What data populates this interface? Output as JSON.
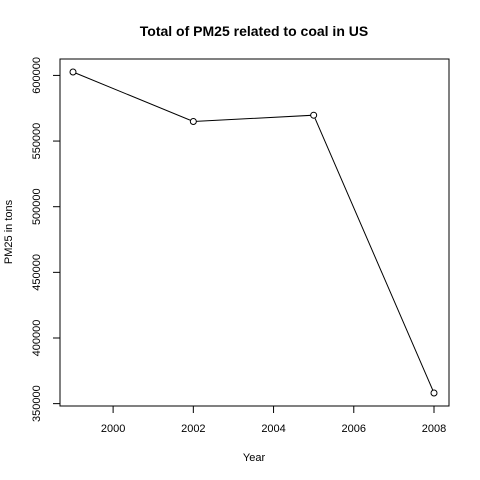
{
  "chart_data": {
    "type": "line",
    "title": "Total of PM25 related to coal in US",
    "xlabel": "Year",
    "ylabel": "PM25 in tons",
    "x": [
      1999,
      2002,
      2005,
      2008
    ],
    "series": [
      {
        "values": [
          602600,
          564900,
          569700,
          358100
        ]
      }
    ],
    "xlim": [
      1999,
      2008
    ],
    "ylim": [
      358100,
      602600
    ],
    "xticks": [
      2000,
      2002,
      2004,
      2006,
      2008
    ],
    "yticks": [
      350000,
      400000,
      450000,
      500000,
      550000,
      600000
    ],
    "xtick_labels": [
      "2000",
      "2002",
      "2004",
      "2006",
      "2008"
    ],
    "ytick_labels": [
      "350000",
      "400000",
      "450000",
      "500000",
      "550000",
      "600000"
    ],
    "marker": "open-circle",
    "grid": false,
    "line_color": "#000000"
  }
}
